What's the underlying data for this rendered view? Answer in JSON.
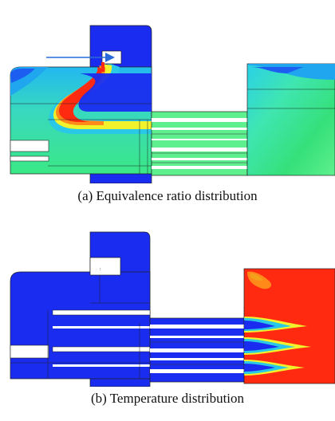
{
  "figure_a": {
    "caption": "(a) Equivalence ratio distribution"
  },
  "figure_b": {
    "caption": "(b) Temperature distribution"
  },
  "colors": {
    "cold_blue": "#1a2cf0",
    "cyan": "#29c8e6",
    "green": "#35e07a",
    "light_green": "#5ef08e",
    "yellow": "#f2f22c",
    "orange": "#ff8a1a",
    "red": "#ff2a10",
    "arrow_blue": "#2a6ad8"
  }
}
